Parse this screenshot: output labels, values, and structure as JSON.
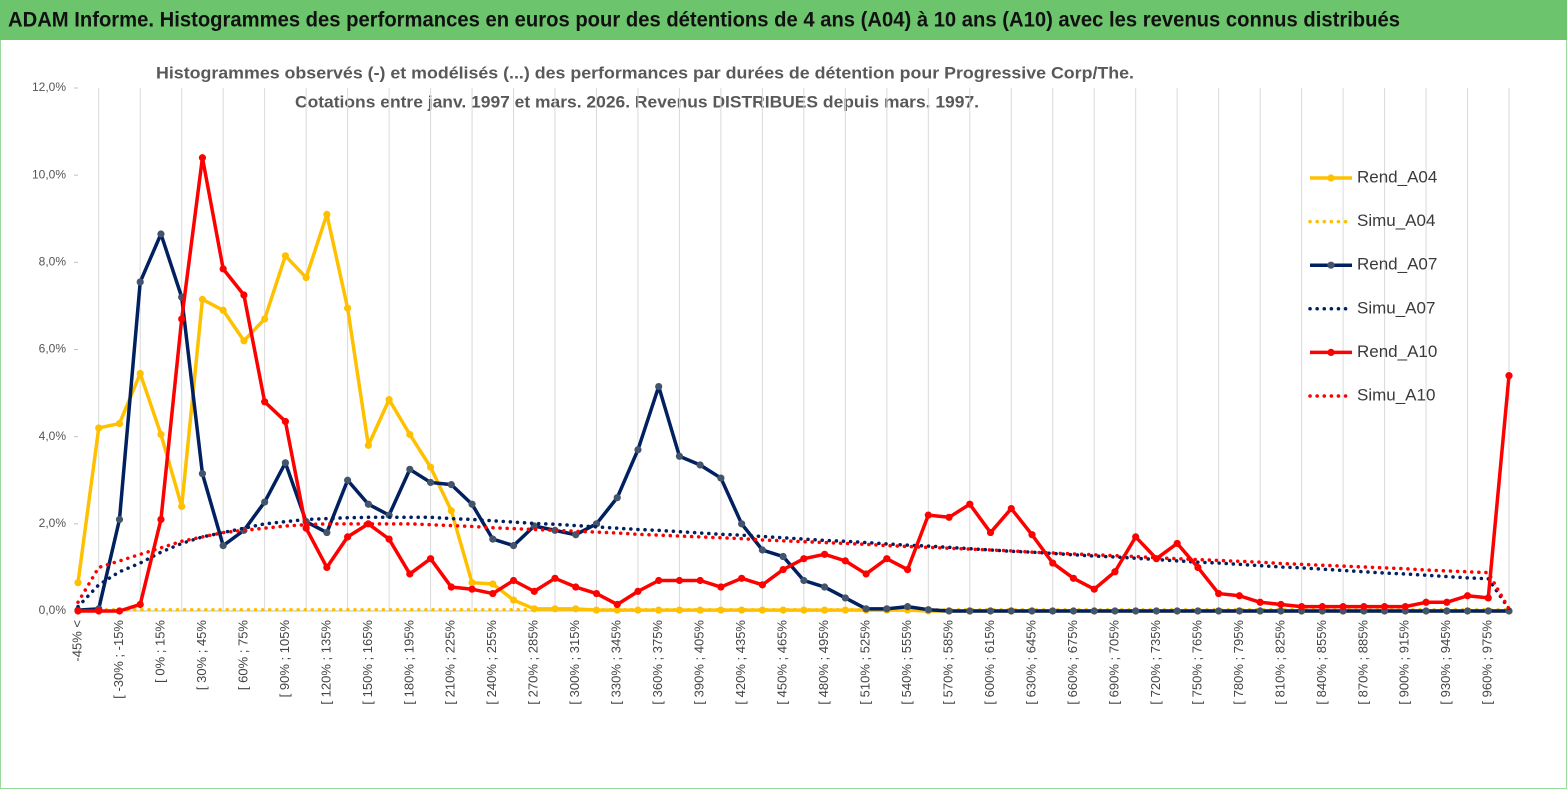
{
  "header": {
    "title": "ADAM Informe. Histogrammes des performances en euros pour des détentions de 4 ans (A04) à 10 ans (A10) avec les revenus connus distribués"
  },
  "chart_data": {
    "type": "line",
    "title": "Histogrammes observés (-) et modélisés (...)  des performances par durées de détention pour Progressive Corp/The.",
    "subtitle": "Cotations entre janv. 1997 et mars. 2026. Revenus DISTRIBUES depuis mars. 1997.",
    "categories": [
      "-45% <",
      null,
      "[ -30% ; -15%",
      null,
      "[ 0% ; 15%",
      null,
      "[ 30% ; 45%",
      null,
      "[ 60% ; 75%",
      null,
      "[ 90% ; 105%",
      null,
      "[ 120% ; 135%",
      null,
      "[ 150% ; 165%",
      null,
      "[ 180% ; 195%",
      null,
      "[ 210% ; 225%",
      null,
      "[ 240% ; 255%",
      null,
      "[ 270% ; 285%",
      null,
      "[ 300% ; 315%",
      null,
      "[ 330% ; 345%",
      null,
      "[ 360% ; 375%",
      null,
      "[ 390% ; 405%",
      null,
      "[ 420% ; 435%",
      null,
      "[ 450% ; 465%",
      null,
      "[ 480% ; 495%",
      null,
      "[ 510% ; 525%",
      null,
      "[ 540% ; 555%",
      null,
      "[ 570% ; 585%",
      null,
      "[ 600% ; 615%",
      null,
      "[ 630% ; 645%",
      null,
      "[ 660% ; 675%",
      null,
      "[ 690% ; 705%",
      null,
      "[ 720% ; 735%",
      null,
      "[ 750% ; 765%",
      null,
      "[ 780% ; 795%",
      null,
      "[ 810% ; 825%",
      null,
      "[ 840% ; 855%",
      null,
      "[ 870% ; 885%",
      null,
      "[ 900% ; 915%",
      null,
      "[ 930% ; 945%",
      null,
      "[ 960% ; 975%",
      null
    ],
    "ylim": [
      0,
      12
    ],
    "yticks": [
      {
        "value": 0,
        "label": "0,0%"
      },
      {
        "value": 2,
        "label": "2,0%"
      },
      {
        "value": 4,
        "label": "4,0%"
      },
      {
        "value": 6,
        "label": "6,0%"
      },
      {
        "value": 8,
        "label": "8,0%"
      },
      {
        "value": 10,
        "label": "10,0%"
      },
      {
        "value": 12,
        "label": "12,0%"
      }
    ],
    "grid": true,
    "legend": "right",
    "series": [
      {
        "name": "Rend_A04",
        "color": "#ffc000",
        "line_style": "solid",
        "marker": true,
        "values": [
          0.65,
          4.2,
          4.3,
          5.45,
          4.05,
          2.4,
          7.15,
          6.9,
          6.2,
          6.7,
          8.15,
          7.65,
          9.1,
          6.95,
          3.8,
          4.85,
          4.05,
          3.3,
          2.3,
          0.65,
          0.62,
          0.25,
          0.05,
          0.05,
          0.05,
          0.02,
          0.02,
          0.02,
          0.02,
          0.02,
          0.02,
          0.02,
          0.02,
          0.02,
          0.02,
          0.02,
          0.02,
          0.02,
          0.02,
          0.02,
          0.02,
          0,
          0,
          0,
          0,
          0,
          0,
          0,
          0,
          0,
          0,
          0,
          0,
          0,
          0,
          0,
          0,
          0,
          0,
          0,
          0,
          0,
          0,
          0,
          0,
          0,
          0,
          0,
          0,
          0
        ]
      },
      {
        "name": "Simu_A04",
        "color": "#ffc000",
        "line_style": "dotted",
        "marker": false,
        "values": [
          0.03,
          0.03,
          0.03,
          0.03,
          0.03,
          0.03,
          0.03,
          0.03,
          0.03,
          0.03,
          0.03,
          0.03,
          0.03,
          0.03,
          0.03,
          0.03,
          0.03,
          0.03,
          0.03,
          0.03,
          0.03,
          0.03,
          0.03,
          0.03,
          0.03,
          0.03,
          0.03,
          0.03,
          0.03,
          0.03,
          0.03,
          0.03,
          0.03,
          0.03,
          0.03,
          0.03,
          0.03,
          0.03,
          0.03,
          0.03,
          0.03,
          0.03,
          0.03,
          0.03,
          0.03,
          0.03,
          0.03,
          0.03,
          0.03,
          0.03,
          0.03,
          0.03,
          0.03,
          0.03,
          0.03,
          0.03,
          0.03,
          0.03,
          0.03,
          0.03,
          0.03,
          0.03,
          0.03,
          0.03,
          0.03,
          0.03,
          0.03,
          0.03,
          0.03,
          0.03
        ]
      },
      {
        "name": "Rend_A07",
        "color": "#002060",
        "marker_color": "#44546a",
        "line_style": "solid",
        "marker": true,
        "values": [
          0.02,
          0.05,
          2.1,
          7.55,
          8.65,
          7.2,
          3.15,
          1.5,
          1.85,
          2.5,
          3.4,
          2.05,
          1.8,
          3.0,
          2.45,
          2.2,
          3.25,
          2.95,
          2.9,
          2.45,
          1.65,
          1.5,
          1.95,
          1.85,
          1.75,
          2.0,
          2.6,
          3.7,
          5.15,
          3.55,
          3.35,
          3.05,
          2.0,
          1.4,
          1.25,
          0.7,
          0.55,
          0.3,
          0.05,
          0.05,
          0.1,
          0.03,
          0,
          0,
          0,
          0,
          0,
          0,
          0,
          0,
          0,
          0,
          0,
          0,
          0,
          0,
          0,
          0,
          0,
          0,
          0,
          0,
          0,
          0,
          0,
          0,
          0,
          0,
          0,
          0
        ]
      },
      {
        "name": "Simu_A07",
        "color": "#002060",
        "line_style": "dotted",
        "marker": false,
        "values": [
          0.1,
          0.6,
          0.9,
          1.1,
          1.35,
          1.55,
          1.7,
          1.8,
          1.9,
          2.0,
          2.05,
          2.1,
          2.12,
          2.14,
          2.15,
          2.15,
          2.15,
          2.15,
          2.12,
          2.1,
          2.07,
          2.04,
          2.01,
          1.99,
          1.96,
          1.93,
          1.9,
          1.87,
          1.85,
          1.82,
          1.79,
          1.76,
          1.74,
          1.71,
          1.68,
          1.65,
          1.62,
          1.6,
          1.57,
          1.54,
          1.51,
          1.49,
          1.46,
          1.43,
          1.4,
          1.37,
          1.35,
          1.32,
          1.29,
          1.26,
          1.24,
          1.21,
          1.18,
          1.15,
          1.12,
          1.1,
          1.07,
          1.04,
          1.01,
          0.99,
          0.96,
          0.93,
          0.9,
          0.87,
          0.85,
          0.82,
          0.79,
          0.76,
          0.74,
          0.05
        ]
      },
      {
        "name": "Rend_A10",
        "color": "#ff0000",
        "line_style": "solid",
        "marker": true,
        "values": [
          0,
          0,
          0,
          0.15,
          2.1,
          6.7,
          10.4,
          7.85,
          7.25,
          4.8,
          4.35,
          1.9,
          1.0,
          1.7,
          2.0,
          1.65,
          0.85,
          1.2,
          0.55,
          0.5,
          0.4,
          0.7,
          0.45,
          0.75,
          0.55,
          0.4,
          0.15,
          0.45,
          0.7,
          0.7,
          0.7,
          0.55,
          0.75,
          0.6,
          0.95,
          1.2,
          1.3,
          1.15,
          0.85,
          1.2,
          0.95,
          2.2,
          2.15,
          2.45,
          1.8,
          2.35,
          1.75,
          1.1,
          0.75,
          0.5,
          0.9,
          1.7,
          1.2,
          1.55,
          1.0,
          0.4,
          0.35,
          0.2,
          0.15,
          0.1,
          0.1,
          0.1,
          0.1,
          0.1,
          0.1,
          0.2,
          0.2,
          0.35,
          0.3,
          5.4
        ]
      },
      {
        "name": "Simu_A10",
        "color": "#ff0000",
        "line_style": "dotted",
        "marker": false,
        "values": [
          0.2,
          1.0,
          1.15,
          1.3,
          1.45,
          1.6,
          1.7,
          1.8,
          1.85,
          1.9,
          1.95,
          1.98,
          2.0,
          2.0,
          2.0,
          2.0,
          2.0,
          1.98,
          1.96,
          1.94,
          1.91,
          1.89,
          1.87,
          1.85,
          1.83,
          1.81,
          1.79,
          1.76,
          1.74,
          1.72,
          1.7,
          1.68,
          1.66,
          1.63,
          1.61,
          1.59,
          1.57,
          1.55,
          1.53,
          1.5,
          1.48,
          1.46,
          1.44,
          1.42,
          1.4,
          1.38,
          1.35,
          1.33,
          1.31,
          1.29,
          1.27,
          1.25,
          1.22,
          1.2,
          1.18,
          1.16,
          1.14,
          1.12,
          1.09,
          1.07,
          1.05,
          1.03,
          1.01,
          0.99,
          0.97,
          0.94,
          0.92,
          0.9,
          0.88,
          0.05
        ]
      }
    ]
  }
}
